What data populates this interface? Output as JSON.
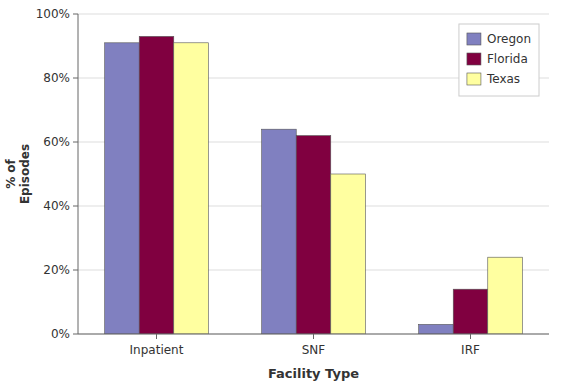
{
  "chart_data": {
    "type": "bar",
    "categories": [
      "Inpatient",
      "SNF",
      "IRF"
    ],
    "series": [
      {
        "name": "Oregon",
        "values": [
          0.91,
          0.64,
          0.03
        ],
        "color": "#8080c0"
      },
      {
        "name": "Florida",
        "values": [
          0.93,
          0.62,
          0.14
        ],
        "color": "#800040"
      },
      {
        "name": "Texas",
        "values": [
          0.91,
          0.5,
          0.24
        ],
        "color": "#ffffa0"
      }
    ],
    "xlabel": "Facility Type",
    "ylabel": "% of\nEpisodes",
    "ylim": [
      0,
      1.0
    ],
    "yticks": [
      {
        "value": 0,
        "label": "0%"
      },
      {
        "value": 0.2,
        "label": "20%"
      },
      {
        "value": 0.4,
        "label": "40%"
      },
      {
        "value": 0.6,
        "label": "60%"
      },
      {
        "value": 0.8,
        "label": "80%"
      },
      {
        "value": 1.0,
        "label": "100%"
      }
    ],
    "grid": true,
    "legend": "upper right"
  }
}
